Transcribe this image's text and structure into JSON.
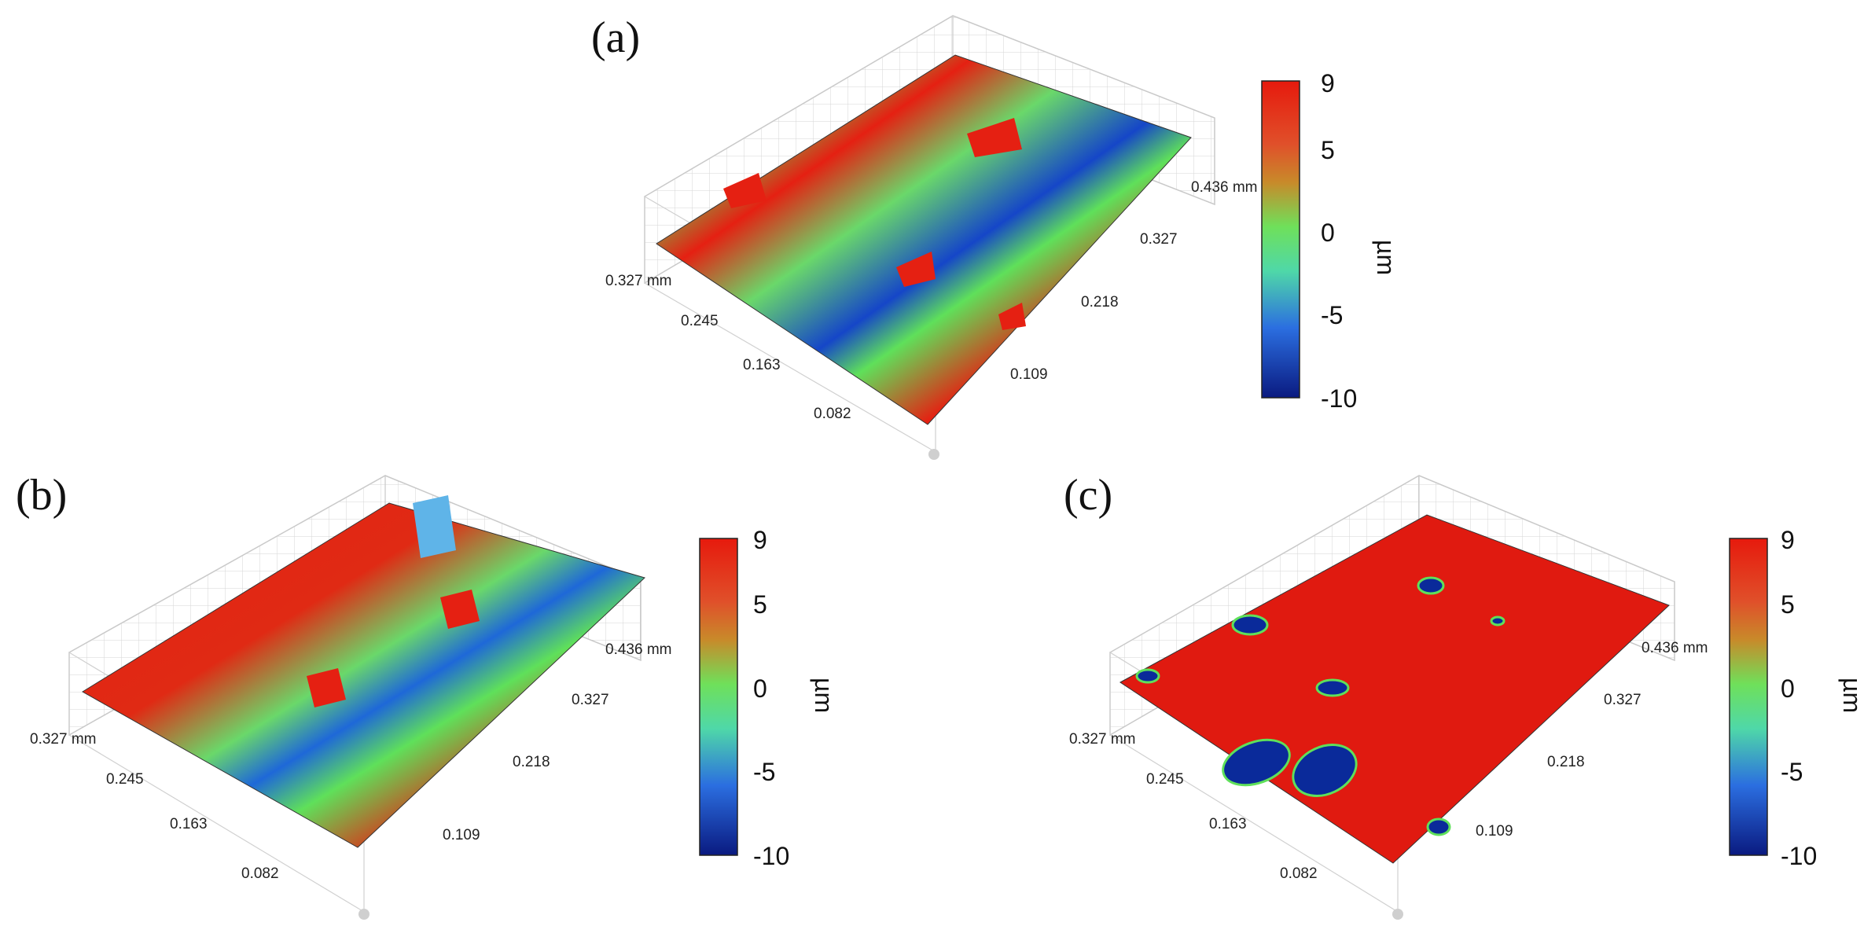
{
  "panels": [
    {
      "id": "a",
      "label": "(a)",
      "axis_y_labels": [
        "0.327 mm",
        "0.245",
        "0.163",
        "0.082"
      ],
      "axis_x_labels": [
        "0.109",
        "0.218",
        "0.327",
        "0.436 mm"
      ],
      "colorbar": {
        "ticks": [
          "9",
          "5",
          "0",
          "-5",
          "-10"
        ],
        "unit": "µm"
      },
      "colors": {
        "high": "#e52012",
        "mid": "#5fe05a",
        "low": "#0a2a9a"
      }
    },
    {
      "id": "b",
      "label": "(b)",
      "axis_y_labels": [
        "0.327 mm",
        "0.245",
        "0.163",
        "0.082"
      ],
      "axis_x_labels": [
        "0.109",
        "0.218",
        "0.327",
        "0.436 mm"
      ],
      "colorbar": {
        "ticks": [
          "9",
          "5",
          "0",
          "-5",
          "-10"
        ],
        "unit": "µm"
      },
      "colors": {
        "high": "#e52012",
        "mid": "#5fe05a",
        "low": "#0a2a9a"
      }
    },
    {
      "id": "c",
      "label": "(c)",
      "axis_y_labels": [
        "0.327 mm",
        "0.245",
        "0.163",
        "0.082"
      ],
      "axis_x_labels": [
        "0.109",
        "0.218",
        "0.327",
        "0.436 mm"
      ],
      "colorbar": {
        "ticks": [
          "9",
          "5",
          "0",
          "-5",
          "-10"
        ],
        "unit": "µm"
      },
      "colors": {
        "high": "#e52012",
        "mid": "#5fe05a",
        "low": "#0a2a9a"
      }
    }
  ]
}
